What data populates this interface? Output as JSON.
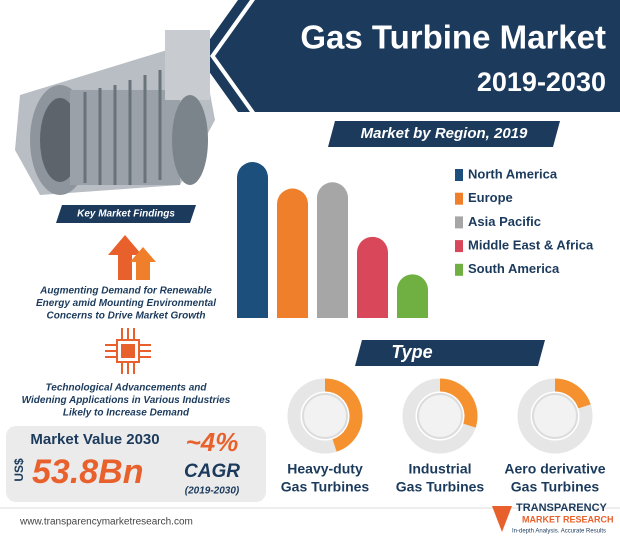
{
  "header": {
    "title": "Gas Turbine Market",
    "period": "2019-2030"
  },
  "findings": {
    "title": "Key Market Findings",
    "items": [
      [
        "Augmenting Demand for Renewable",
        "Energy amid Mounting Environmental",
        "Concerns to Drive Market Growth"
      ],
      [
        "Technological Advancements and",
        "Widening Applications in Various Industries",
        "Likely to Increase Demand"
      ]
    ]
  },
  "market_value": {
    "title": "Market Value 2030",
    "currency": "US$",
    "value": "53.8Bn",
    "cagr": "~4%",
    "cagr_label": "CAGR",
    "cagr_period": "(2019-2030)"
  },
  "chart_data": [
    {
      "type": "bar",
      "title": "Market by Region, 2019",
      "categories": [
        "North America",
        "Europe",
        "Asia Pacific",
        "Middle East & Africa",
        "South America"
      ],
      "values": [
        100,
        83,
        87,
        52,
        28
      ],
      "colors": [
        "#1c4f7c",
        "#f07f2b",
        "#a6a6a6",
        "#d9475a",
        "#70b043"
      ],
      "ylim": [
        0,
        100
      ]
    },
    {
      "type": "donut",
      "title": "Type",
      "categories": [
        [
          "Heavy-duty",
          "Gas Turbines"
        ],
        [
          "Industrial",
          "Gas Turbines"
        ],
        [
          "Aero derivative",
          "Gas Turbines"
        ]
      ],
      "values": [
        45,
        30,
        20
      ],
      "color": "#f5922f",
      "ylim": [
        0,
        100
      ]
    }
  ],
  "footer": {
    "url": "www.transparencymarketresearch.com",
    "logo": [
      "TRANSPARENCY",
      "MARKET RESEARCH",
      "In-depth Analysis. Accurate Results"
    ]
  }
}
